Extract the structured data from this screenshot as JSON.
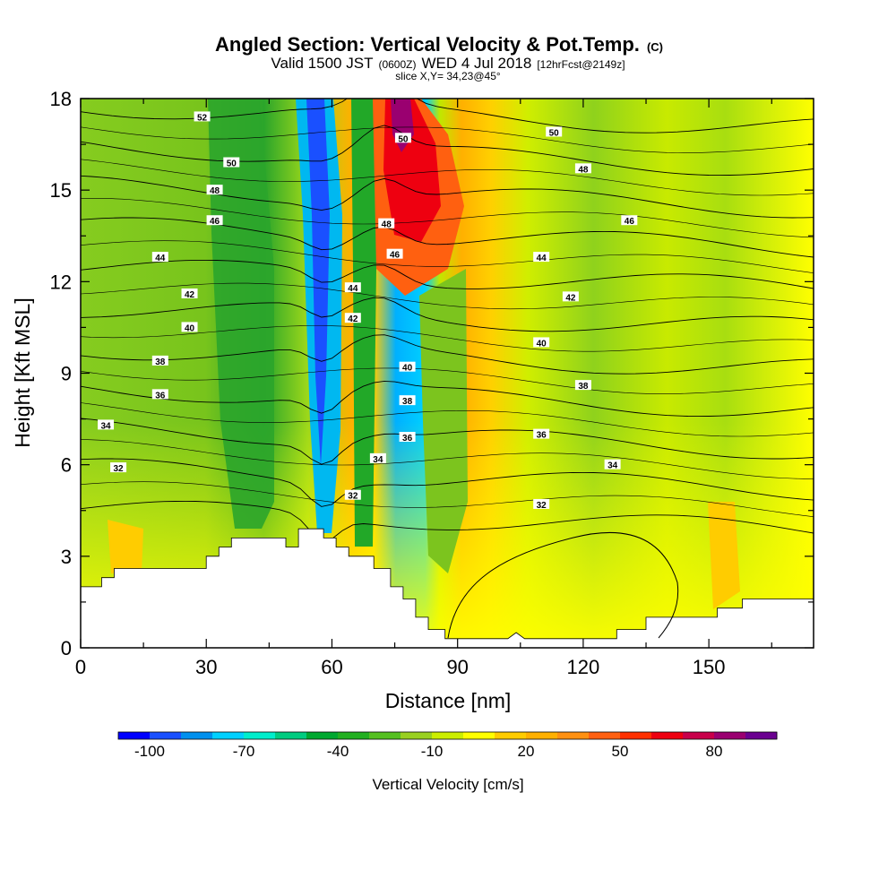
{
  "title": {
    "main": "Angled Section: Vertical Velocity & Pot.Temp.",
    "main_tag": "(C)",
    "valid_prefix": "Valid 1500 JST",
    "valid_utc": "(0600Z)",
    "valid_date": "WED 4 Jul 2018",
    "forecast": "[12hrFcst@2149z]",
    "slice": "slice X,Y= 34,23@45°"
  },
  "chart_data": {
    "type": "heatmap",
    "xlabel": "Distance [nm]",
    "ylabel": "Height [Kft MSL]",
    "xlim": [
      0,
      175
    ],
    "ylim": [
      0,
      18
    ],
    "x_ticks": [
      {
        "value": 0,
        "label": "0"
      },
      {
        "value": 30,
        "label": "30"
      },
      {
        "value": 60,
        "label": "60"
      },
      {
        "value": 90,
        "label": "90"
      },
      {
        "value": 120,
        "label": "120"
      },
      {
        "value": 150,
        "label": "150"
      }
    ],
    "y_ticks": [
      {
        "value": 0,
        "label": "0"
      },
      {
        "value": 3,
        "label": "3"
      },
      {
        "value": 6,
        "label": "6"
      },
      {
        "value": 9,
        "label": "9"
      },
      {
        "value": 12,
        "label": "12"
      },
      {
        "value": 15,
        "label": "15"
      },
      {
        "value": 18,
        "label": "18"
      }
    ],
    "colorbar": {
      "label": "Vertical Velocity [cm/s]",
      "min": -110,
      "max": 100,
      "colors": [
        "#0000ff",
        "#1a50ff",
        "#0090ee",
        "#00d0ff",
        "#00eecc",
        "#00cc80",
        "#00a830",
        "#22b020",
        "#55c020",
        "#99d020",
        "#ccee00",
        "#ffff00",
        "#ffcc00",
        "#ffb000",
        "#ff9010",
        "#ff6010",
        "#ff3000",
        "#ee0010",
        "#c8004a",
        "#9a0070",
        "#6a0090"
      ],
      "tick_labels": [
        {
          "value": -100,
          "label": "-100"
        },
        {
          "value": -70,
          "label": "-70"
        },
        {
          "value": -40,
          "label": "-40"
        },
        {
          "value": -10,
          "label": "-10"
        },
        {
          "value": 20,
          "label": "20"
        },
        {
          "value": 50,
          "label": "50"
        },
        {
          "value": 80,
          "label": "80"
        }
      ]
    },
    "terrain_profile": [
      [
        0,
        2.0
      ],
      [
        5,
        2.0
      ],
      [
        5,
        2.3
      ],
      [
        8,
        2.3
      ],
      [
        8,
        2.6
      ],
      [
        30,
        2.6
      ],
      [
        30,
        3.0
      ],
      [
        33,
        3.0
      ],
      [
        33,
        3.3
      ],
      [
        36,
        3.3
      ],
      [
        36,
        3.6
      ],
      [
        49,
        3.6
      ],
      [
        49,
        3.3
      ],
      [
        52,
        3.3
      ],
      [
        52,
        3.9
      ],
      [
        58,
        3.9
      ],
      [
        58,
        3.6
      ],
      [
        61,
        3.6
      ],
      [
        61,
        3.3
      ],
      [
        64,
        3.3
      ],
      [
        64,
        3.0
      ],
      [
        70,
        3.0
      ],
      [
        70,
        2.6
      ],
      [
        74,
        2.6
      ],
      [
        74,
        2.0
      ],
      [
        77,
        2.0
      ],
      [
        77,
        1.6
      ],
      [
        80,
        1.6
      ],
      [
        80,
        1.0
      ],
      [
        83,
        1.0
      ],
      [
        83,
        0.6
      ],
      [
        87,
        0.6
      ],
      [
        87,
        0.3
      ],
      [
        102,
        0.3
      ],
      [
        104,
        0.5
      ],
      [
        106,
        0.3
      ],
      [
        128,
        0.3
      ],
      [
        128,
        0.6
      ],
      [
        135,
        0.6
      ],
      [
        135,
        1.0
      ],
      [
        152,
        1.0
      ],
      [
        152,
        1.3
      ],
      [
        158,
        1.3
      ],
      [
        158,
        1.6
      ],
      [
        175,
        1.6
      ]
    ],
    "theta_contours": [
      {
        "level": 32,
        "label": "32"
      },
      {
        "level": 34,
        "label": "34"
      },
      {
        "level": 36,
        "label": "36"
      },
      {
        "level": 38,
        "label": "38"
      },
      {
        "level": 40,
        "label": "40"
      },
      {
        "level": 42,
        "label": "42"
      },
      {
        "level": 44,
        "label": "44"
      },
      {
        "level": 46,
        "label": "46"
      },
      {
        "level": 48,
        "label": "48"
      },
      {
        "level": 50,
        "label": "50"
      },
      {
        "level": 52,
        "label": "52"
      }
    ],
    "contour_labels": [
      {
        "x": 29,
        "y": 17.4,
        "text": "52"
      },
      {
        "x": 36,
        "y": 15.9,
        "text": "50"
      },
      {
        "x": 32,
        "y": 15.0,
        "text": "48"
      },
      {
        "x": 32,
        "y": 14.0,
        "text": "46"
      },
      {
        "x": 19,
        "y": 12.8,
        "text": "44"
      },
      {
        "x": 26,
        "y": 11.6,
        "text": "42"
      },
      {
        "x": 26,
        "y": 10.5,
        "text": "40"
      },
      {
        "x": 19,
        "y": 9.4,
        "text": "38"
      },
      {
        "x": 19,
        "y": 8.3,
        "text": "36"
      },
      {
        "x": 6,
        "y": 7.3,
        "text": "34"
      },
      {
        "x": 9,
        "y": 5.9,
        "text": "32"
      },
      {
        "x": 77,
        "y": 16.7,
        "text": "50"
      },
      {
        "x": 73,
        "y": 13.9,
        "text": "48"
      },
      {
        "x": 75,
        "y": 12.9,
        "text": "46"
      },
      {
        "x": 65,
        "y": 11.8,
        "text": "44"
      },
      {
        "x": 65,
        "y": 10.8,
        "text": "42"
      },
      {
        "x": 78,
        "y": 9.2,
        "text": "40"
      },
      {
        "x": 78,
        "y": 8.1,
        "text": "38"
      },
      {
        "x": 78,
        "y": 6.9,
        "text": "36"
      },
      {
        "x": 71,
        "y": 6.2,
        "text": "34"
      },
      {
        "x": 65,
        "y": 5.0,
        "text": "32"
      },
      {
        "x": 113,
        "y": 16.9,
        "text": "50"
      },
      {
        "x": 120,
        "y": 15.7,
        "text": "48"
      },
      {
        "x": 131,
        "y": 14.0,
        "text": "46"
      },
      {
        "x": 110,
        "y": 12.8,
        "text": "44"
      },
      {
        "x": 117,
        "y": 11.5,
        "text": "42"
      },
      {
        "x": 110,
        "y": 10.0,
        "text": "40"
      },
      {
        "x": 120,
        "y": 8.6,
        "text": "38"
      },
      {
        "x": 110,
        "y": 7.0,
        "text": "36"
      },
      {
        "x": 127,
        "y": 6.0,
        "text": "34"
      },
      {
        "x": 110,
        "y": 4.7,
        "text": "32"
      }
    ]
  }
}
